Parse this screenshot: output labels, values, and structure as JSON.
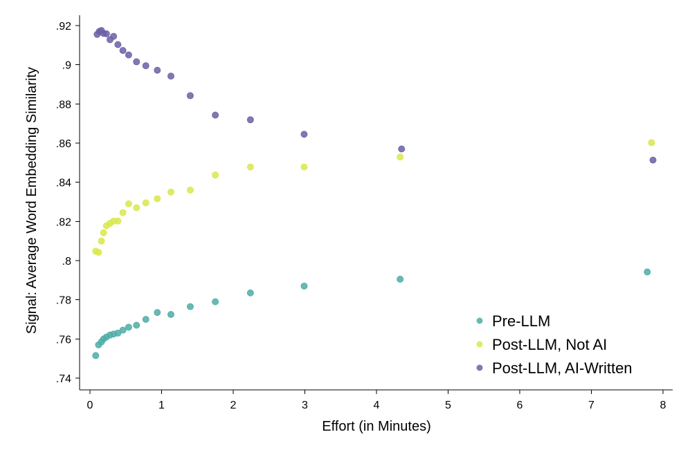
{
  "chart_data": {
    "type": "scatter",
    "title": "",
    "xlabel": "Effort (in Minutes)",
    "ylabel": "Signal: Average Word Embedding Similarity",
    "xlim": [
      0,
      8
    ],
    "ylim": [
      0.74,
      0.92
    ],
    "x_ticks": [
      0,
      1,
      2,
      3,
      4,
      5,
      6,
      7,
      8
    ],
    "x_tick_labels": [
      "0",
      "1",
      "2",
      "3",
      "4",
      "5",
      "6",
      "7",
      "8"
    ],
    "y_ticks": [
      0.74,
      0.76,
      0.78,
      0.8,
      0.82,
      0.84,
      0.86,
      0.88,
      0.9,
      0.92
    ],
    "y_tick_labels": [
      ".74",
      ".76",
      ".78",
      ".8",
      ".82",
      ".84",
      ".86",
      ".88",
      ".9",
      ".92"
    ],
    "grid": false,
    "legend_position": "bottom-right",
    "series": [
      {
        "name": "Pre-LLM",
        "color": "#4fada6",
        "points": [
          [
            0.08,
            0.7515
          ],
          [
            0.12,
            0.757
          ],
          [
            0.16,
            0.7585
          ],
          [
            0.19,
            0.76
          ],
          [
            0.23,
            0.761
          ],
          [
            0.28,
            0.762
          ],
          [
            0.33,
            0.7625
          ],
          [
            0.39,
            0.763
          ],
          [
            0.46,
            0.7645
          ],
          [
            0.54,
            0.766
          ],
          [
            0.65,
            0.767
          ],
          [
            0.78,
            0.77
          ],
          [
            0.94,
            0.7735
          ],
          [
            1.13,
            0.7725
          ],
          [
            1.4,
            0.7765
          ],
          [
            1.75,
            0.779
          ],
          [
            2.24,
            0.7835
          ],
          [
            2.99,
            0.787
          ],
          [
            4.33,
            0.7905
          ],
          [
            7.78,
            0.7942
          ]
        ]
      },
      {
        "name": "Post-LLM, Not AI",
        "color": "#d9e84a",
        "points": [
          [
            0.08,
            0.8048
          ],
          [
            0.12,
            0.8042
          ],
          [
            0.16,
            0.81
          ],
          [
            0.19,
            0.8142
          ],
          [
            0.23,
            0.8178
          ],
          [
            0.28,
            0.819
          ],
          [
            0.33,
            0.8202
          ],
          [
            0.39,
            0.8202
          ],
          [
            0.46,
            0.8245
          ],
          [
            0.54,
            0.829
          ],
          [
            0.65,
            0.827
          ],
          [
            0.78,
            0.8295
          ],
          [
            0.94,
            0.8316
          ],
          [
            1.13,
            0.835
          ],
          [
            1.4,
            0.836
          ],
          [
            1.75,
            0.8437
          ],
          [
            2.24,
            0.8478
          ],
          [
            2.99,
            0.8478
          ],
          [
            4.33,
            0.8529
          ],
          [
            7.84,
            0.8602
          ]
        ]
      },
      {
        "name": "Post-LLM, AI-Written",
        "color": "#6b60a6",
        "points": [
          [
            0.1,
            0.9155
          ],
          [
            0.13,
            0.917
          ],
          [
            0.16,
            0.9175
          ],
          [
            0.19,
            0.916
          ],
          [
            0.23,
            0.9158
          ],
          [
            0.28,
            0.9128
          ],
          [
            0.33,
            0.9145
          ],
          [
            0.39,
            0.9103
          ],
          [
            0.46,
            0.9073
          ],
          [
            0.54,
            0.905
          ],
          [
            0.65,
            0.9015
          ],
          [
            0.78,
            0.8995
          ],
          [
            0.94,
            0.8972
          ],
          [
            1.13,
            0.8942
          ],
          [
            1.4,
            0.8842
          ],
          [
            1.75,
            0.8743
          ],
          [
            2.24,
            0.8719
          ],
          [
            2.99,
            0.8645
          ],
          [
            4.35,
            0.857
          ],
          [
            7.86,
            0.8513
          ]
        ]
      }
    ]
  }
}
